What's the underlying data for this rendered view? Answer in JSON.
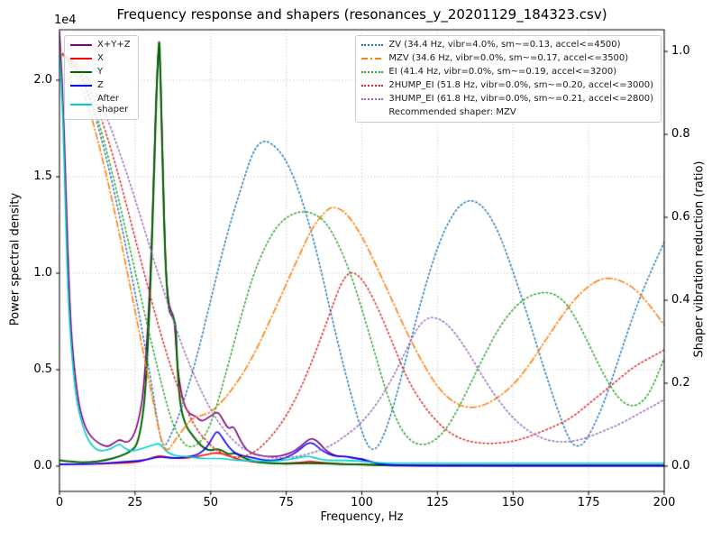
{
  "figure": {
    "title": "Frequency response and shapers (resonances_y_20201129_184323.csv)",
    "background": "#ffffff"
  },
  "axes": {
    "x": {
      "label": "Frequency, Hz",
      "min": 0,
      "max": 200,
      "ticks": [
        0,
        25,
        50,
        75,
        100,
        125,
        150,
        175,
        200
      ],
      "tick_labels": [
        "0",
        "25",
        "50",
        "75",
        "100",
        "125",
        "150",
        "175",
        "200"
      ]
    },
    "y_left": {
      "label": "Power spectral density",
      "offset_label": "1e4",
      "min": 0,
      "max": 2.26,
      "ticks": [
        0,
        0.5,
        1.0,
        1.5,
        2.0
      ],
      "tick_labels": [
        "0.0",
        "0.5",
        "1.0",
        "1.5",
        "2.0"
      ]
    },
    "y_right": {
      "label": "Shaper vibration reduction (ratio)",
      "min": 0,
      "max": 1.05,
      "ticks": [
        0,
        0.2,
        0.4,
        0.6,
        0.8,
        1.0
      ],
      "tick_labels": [
        "0.0",
        "0.2",
        "0.4",
        "0.6",
        "0.8",
        "1.0"
      ]
    }
  },
  "legend_shapers": {
    "footer": "Recommended shaper: MZV"
  },
  "chart_data": {
    "type": "line",
    "title": "Frequency response and shapers (resonances_y_20201129_184323.csv)",
    "xlabel": "Frequency, Hz",
    "ylabel_left": "Power spectral density",
    "ylabel_right": "Shaper vibration reduction (ratio)",
    "xlim": [
      0,
      200
    ],
    "ylim_left": [
      0,
      2.26
    ],
    "ylim_right": [
      0,
      1.05
    ],
    "y_left_scale_note": "PSD values are in units of 1e4",
    "grid": "major dotted",
    "legend_positions": [
      "upper left",
      "upper right"
    ],
    "series": [
      {
        "name": "X+Y+Z",
        "axis": "left",
        "color": "#800080",
        "style": "solid",
        "width": 1.6,
        "x": [
          0,
          1,
          2,
          3,
          4,
          6,
          8,
          10,
          12,
          14,
          16,
          18,
          20,
          22,
          24,
          26,
          28,
          30,
          31,
          32,
          33,
          34,
          35,
          36,
          37,
          38,
          39,
          41,
          43,
          45,
          47,
          49,
          51,
          52,
          53,
          54,
          56,
          57.5,
          59,
          61,
          63,
          66,
          69,
          72,
          75,
          78,
          81,
          83,
          85,
          87,
          89,
          92,
          95,
          98,
          101,
          104,
          107,
          110,
          115,
          125,
          150,
          175,
          200
        ],
        "y": [
          2.25,
          2.0,
          1.5,
          1.0,
          0.65,
          0.35,
          0.22,
          0.16,
          0.13,
          0.11,
          0.1,
          0.12,
          0.14,
          0.12,
          0.14,
          0.22,
          0.4,
          0.95,
          1.4,
          1.95,
          2.24,
          1.7,
          1.05,
          0.85,
          0.8,
          0.77,
          0.5,
          0.32,
          0.27,
          0.26,
          0.23,
          0.25,
          0.27,
          0.28,
          0.27,
          0.24,
          0.19,
          0.21,
          0.16,
          0.1,
          0.07,
          0.055,
          0.05,
          0.05,
          0.06,
          0.08,
          0.12,
          0.145,
          0.135,
          0.1,
          0.07,
          0.05,
          0.05,
          0.04,
          0.03,
          0.02,
          0.01,
          0.007,
          0.005,
          0.004,
          0.003,
          0.003,
          0.003
        ]
      },
      {
        "name": "X",
        "axis": "left",
        "color": "#ff0000",
        "style": "solid",
        "width": 1.6,
        "x": [
          0,
          10,
          20,
          26,
          30,
          33,
          36,
          40,
          44,
          47,
          50,
          52,
          55,
          58,
          62,
          66,
          70,
          75,
          80,
          83,
          86,
          90,
          95,
          100,
          105,
          110,
          120,
          140,
          170,
          200
        ],
        "y": [
          0.01,
          0.01,
          0.015,
          0.02,
          0.04,
          0.055,
          0.045,
          0.04,
          0.045,
          0.055,
          0.065,
          0.07,
          0.06,
          0.04,
          0.025,
          0.02,
          0.015,
          0.015,
          0.02,
          0.025,
          0.02,
          0.015,
          0.01,
          0.01,
          0.005,
          0.003,
          0.002,
          0.002,
          0.002,
          0.002
        ]
      },
      {
        "name": "Y",
        "axis": "left",
        "color": "#006400",
        "style": "solid",
        "width": 2.0,
        "x": [
          0,
          5,
          10,
          15,
          20,
          24,
          26,
          28,
          29,
          30,
          31,
          32,
          32.7,
          33,
          33.3,
          34,
          35,
          36,
          37,
          38,
          38.5,
          39,
          40,
          42,
          44,
          46,
          48,
          50,
          52,
          54,
          56,
          58,
          60,
          63,
          66,
          70,
          75,
          80,
          85,
          90,
          95,
          100,
          105,
          110,
          120,
          140,
          170,
          200
        ],
        "y": [
          0.03,
          0.02,
          0.02,
          0.03,
          0.05,
          0.08,
          0.12,
          0.3,
          0.55,
          0.9,
          1.35,
          1.9,
          2.15,
          2.22,
          2.1,
          1.6,
          1.05,
          0.82,
          0.78,
          0.76,
          0.72,
          0.5,
          0.3,
          0.2,
          0.16,
          0.12,
          0.09,
          0.08,
          0.09,
          0.08,
          0.06,
          0.07,
          0.05,
          0.03,
          0.02,
          0.015,
          0.012,
          0.015,
          0.015,
          0.012,
          0.01,
          0.008,
          0.005,
          0.004,
          0.003,
          0.002,
          0.002,
          0.002
        ]
      },
      {
        "name": "Z",
        "axis": "left",
        "color": "#0000ff",
        "style": "solid",
        "width": 1.6,
        "x": [
          0,
          10,
          20,
          28,
          33,
          38,
          43,
          46,
          49,
          51,
          52,
          53,
          55,
          57,
          59,
          62,
          65,
          68,
          72,
          76,
          79,
          82,
          84,
          86,
          89,
          92,
          95,
          98,
          100,
          103,
          106,
          110,
          120,
          140,
          170,
          200
        ],
        "y": [
          0.01,
          0.01,
          0.02,
          0.03,
          0.05,
          0.04,
          0.05,
          0.06,
          0.1,
          0.16,
          0.18,
          0.17,
          0.12,
          0.08,
          0.06,
          0.05,
          0.04,
          0.03,
          0.03,
          0.05,
          0.08,
          0.12,
          0.12,
          0.09,
          0.06,
          0.05,
          0.05,
          0.04,
          0.04,
          0.02,
          0.01,
          0.005,
          0.003,
          0.003,
          0.003,
          0.003
        ]
      },
      {
        "name": "After\nshaper",
        "axis": "left",
        "color": "#00cfcf",
        "style": "solid",
        "width": 1.6,
        "x": [
          0,
          1,
          2,
          3,
          5,
          7,
          9,
          11,
          13,
          15,
          17,
          19,
          20,
          21,
          23,
          25,
          27,
          29,
          31,
          33,
          35,
          37,
          40,
          43,
          46,
          50,
          54,
          58,
          62,
          66,
          70,
          74,
          78,
          81,
          83,
          85,
          88,
          92,
          96,
          100,
          104,
          108,
          115,
          125,
          140,
          160,
          180,
          200
        ],
        "y": [
          2.15,
          1.9,
          1.3,
          0.8,
          0.4,
          0.24,
          0.15,
          0.1,
          0.08,
          0.08,
          0.09,
          0.11,
          0.115,
          0.1,
          0.08,
          0.08,
          0.09,
          0.1,
          0.11,
          0.12,
          0.08,
          0.06,
          0.05,
          0.05,
          0.04,
          0.04,
          0.04,
          0.03,
          0.03,
          0.025,
          0.025,
          0.03,
          0.04,
          0.05,
          0.05,
          0.04,
          0.03,
          0.03,
          0.03,
          0.025,
          0.02,
          0.015,
          0.015,
          0.015,
          0.015,
          0.015,
          0.015,
          0.015
        ]
      },
      {
        "name": "ZV (34.4 Hz, vibr=4.0%, sm~=0.13, accel<=4500)",
        "axis": "right",
        "color": "#1f77b4",
        "style": "dotted",
        "width": 1.5,
        "x": [
          0,
          5,
          10,
          15,
          20,
          25,
          30,
          33,
          34.4,
          36,
          40,
          45,
          50,
          55,
          60,
          64,
          67,
          70,
          74,
          78,
          82,
          86,
          90,
          95,
          100,
          103,
          106,
          110,
          115,
          120,
          125,
          130,
          135,
          140,
          145,
          150,
          155,
          160,
          165,
          169,
          172,
          175,
          180,
          185,
          190,
          195,
          200
        ],
        "y": [
          1.0,
          0.97,
          0.89,
          0.76,
          0.6,
          0.42,
          0.22,
          0.08,
          0.045,
          0.06,
          0.13,
          0.25,
          0.4,
          0.55,
          0.67,
          0.76,
          0.785,
          0.78,
          0.75,
          0.69,
          0.6,
          0.49,
          0.36,
          0.21,
          0.08,
          0.035,
          0.05,
          0.13,
          0.27,
          0.41,
          0.53,
          0.61,
          0.645,
          0.63,
          0.57,
          0.47,
          0.36,
          0.24,
          0.13,
          0.055,
          0.045,
          0.07,
          0.15,
          0.26,
          0.37,
          0.46,
          0.54
        ]
      },
      {
        "name": "MZV (34.6 Hz, vibr=0.0%, sm~=0.17, accel<=3500)",
        "axis": "right",
        "color": "#ff7f0e",
        "style": "dashdot",
        "width": 1.6,
        "x": [
          0,
          5,
          10,
          15,
          20,
          25,
          30,
          34.6,
          38,
          42,
          44,
          46,
          48,
          50,
          53,
          56,
          60,
          64,
          68,
          72,
          76,
          80,
          84,
          88,
          90,
          93,
          96,
          100,
          105,
          110,
          115,
          120,
          125,
          130,
          135,
          140,
          145,
          150,
          155,
          160,
          165,
          170,
          175,
          180,
          185,
          190,
          195,
          200
        ],
        "y": [
          1.0,
          0.96,
          0.86,
          0.72,
          0.555,
          0.375,
          0.19,
          0.025,
          0.06,
          0.1,
          0.115,
          0.12,
          0.125,
          0.13,
          0.15,
          0.175,
          0.215,
          0.265,
          0.325,
          0.39,
          0.455,
          0.52,
          0.58,
          0.615,
          0.625,
          0.62,
          0.6,
          0.555,
          0.48,
          0.4,
          0.32,
          0.25,
          0.19,
          0.155,
          0.14,
          0.145,
          0.165,
          0.195,
          0.24,
          0.295,
          0.35,
          0.4,
          0.435,
          0.455,
          0.45,
          0.43,
          0.39,
          0.34
        ]
      },
      {
        "name": "EI (41.4 Hz, vibr=0.0%, sm~=0.19, accel<=3200)",
        "axis": "right",
        "color": "#2ca02c",
        "style": "dotted",
        "width": 1.5,
        "x": [
          0,
          5,
          10,
          15,
          20,
          25,
          30,
          35,
          38,
          41.4,
          44,
          47,
          50,
          53,
          56,
          60,
          64,
          68,
          72,
          76,
          80,
          84,
          88,
          92,
          96,
          100,
          104,
          108,
          112,
          116,
          120,
          124,
          128,
          132,
          136,
          140,
          145,
          150,
          155,
          160,
          164,
          168,
          172,
          176,
          180,
          185,
          190,
          195,
          200
        ],
        "y": [
          1.0,
          0.97,
          0.9,
          0.78,
          0.63,
          0.47,
          0.31,
          0.16,
          0.09,
          0.05,
          0.045,
          0.06,
          0.1,
          0.17,
          0.25,
          0.36,
          0.46,
          0.53,
          0.58,
          0.605,
          0.615,
          0.61,
          0.59,
          0.54,
          0.47,
          0.38,
          0.28,
          0.18,
          0.1,
          0.06,
          0.05,
          0.06,
          0.09,
          0.14,
          0.2,
          0.26,
          0.33,
          0.38,
          0.41,
          0.42,
          0.415,
          0.39,
          0.34,
          0.28,
          0.22,
          0.16,
          0.14,
          0.17,
          0.26
        ]
      },
      {
        "name": "2HUMP_EI (51.8 Hz, vibr=0.0%, sm~=0.20, accel<=3000)",
        "axis": "right",
        "color": "#d62728",
        "style": "dotted",
        "width": 1.5,
        "x": [
          0,
          5,
          10,
          15,
          20,
          25,
          30,
          35,
          40,
          45,
          50,
          51.8,
          55,
          60,
          65,
          70,
          75,
          80,
          85,
          90,
          93,
          96,
          99,
          102,
          106,
          110,
          115,
          120,
          125,
          130,
          135,
          140,
          145,
          150,
          155,
          160,
          165,
          170,
          175,
          180,
          185,
          190,
          195,
          200
        ],
        "y": [
          1.0,
          0.975,
          0.915,
          0.815,
          0.69,
          0.55,
          0.41,
          0.28,
          0.17,
          0.09,
          0.05,
          0.04,
          0.025,
          0.02,
          0.035,
          0.07,
          0.12,
          0.19,
          0.28,
          0.38,
          0.44,
          0.47,
          0.46,
          0.43,
          0.37,
          0.3,
          0.21,
          0.15,
          0.105,
          0.075,
          0.06,
          0.055,
          0.055,
          0.06,
          0.07,
          0.085,
          0.1,
          0.12,
          0.15,
          0.18,
          0.21,
          0.24,
          0.26,
          0.28
        ]
      },
      {
        "name": "3HUMP_EI (61.8 Hz, vibr=0.0%, sm~=0.21, accel<=2800)",
        "axis": "right",
        "color": "#9467bd",
        "style": "dotted",
        "width": 1.5,
        "x": [
          0,
          5,
          10,
          15,
          20,
          25,
          30,
          35,
          40,
          45,
          50,
          55,
          60,
          61.8,
          65,
          70,
          75,
          80,
          85,
          90,
          95,
          100,
          105,
          110,
          114,
          118,
          121,
          124,
          128,
          132,
          136,
          140,
          145,
          150,
          155,
          160,
          165,
          170,
          175,
          180,
          185,
          190,
          195,
          200
        ],
        "y": [
          1.0,
          0.98,
          0.93,
          0.855,
          0.755,
          0.645,
          0.525,
          0.41,
          0.3,
          0.21,
          0.135,
          0.08,
          0.045,
          0.04,
          0.028,
          0.02,
          0.02,
          0.025,
          0.035,
          0.05,
          0.075,
          0.105,
          0.15,
          0.21,
          0.27,
          0.33,
          0.355,
          0.36,
          0.345,
          0.31,
          0.265,
          0.215,
          0.16,
          0.115,
          0.085,
          0.065,
          0.058,
          0.06,
          0.07,
          0.085,
          0.1,
          0.12,
          0.14,
          0.16
        ]
      }
    ]
  }
}
